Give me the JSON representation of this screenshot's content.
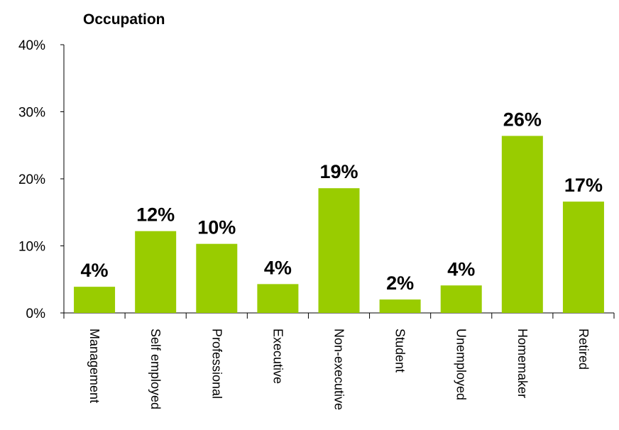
{
  "chart_data": {
    "type": "bar",
    "title": "Occupation",
    "categories": [
      "Management",
      "Self employed",
      "Professional",
      "Executive",
      "Non-executive",
      "Student",
      "Unemployed",
      "Homemaker",
      "Retired"
    ],
    "values": [
      3.9,
      12.2,
      10.3,
      4.3,
      18.6,
      2.0,
      4.1,
      26.4,
      16.6
    ],
    "value_labels": [
      "4%",
      "12%",
      "10%",
      "4%",
      "19%",
      "2%",
      "4%",
      "26%",
      "17%"
    ],
    "color": "#99cc00",
    "ylim": [
      0,
      40
    ],
    "yticks": [
      {
        "value": 0,
        "label": "0%"
      },
      {
        "value": 10,
        "label": "10%"
      },
      {
        "value": 20,
        "label": "20%"
      },
      {
        "value": 30,
        "label": "30%"
      },
      {
        "value": 40,
        "label": "40%"
      }
    ]
  }
}
